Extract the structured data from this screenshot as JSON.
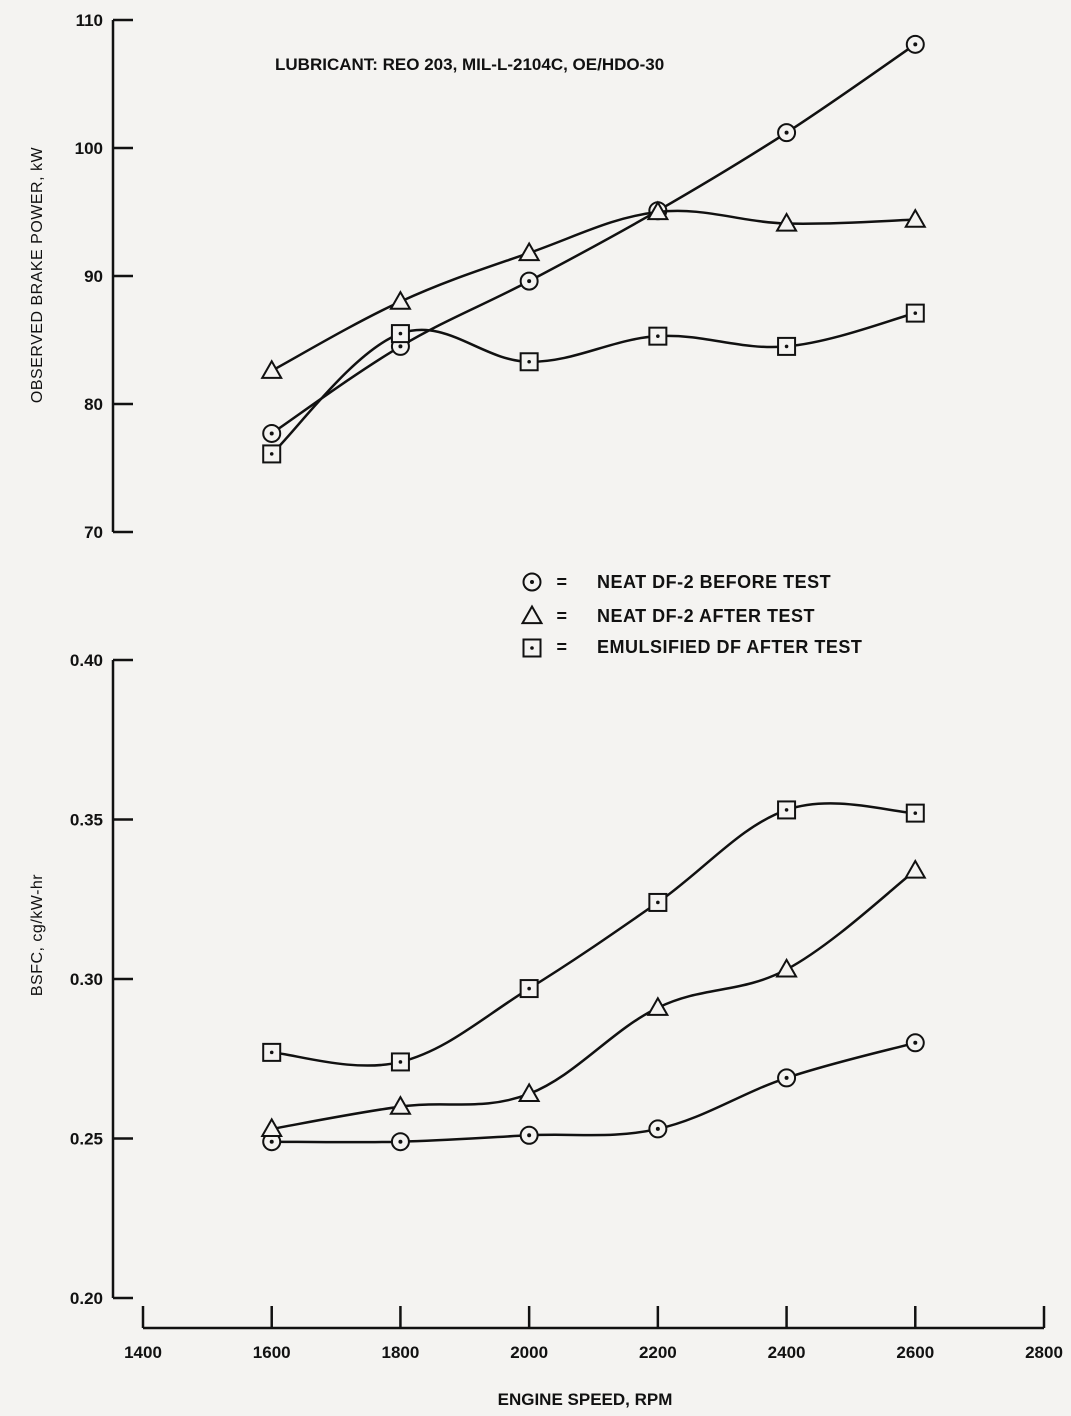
{
  "chart_data": [
    {
      "type": "line",
      "annotation": "LUBRICANT:  REO 203, MIL-L-2104C, OE/HDO-30",
      "ylabel": "OBSERVED BRAKE POWER, kW",
      "xlabel": "",
      "ylim": [
        70,
        110
      ],
      "yticks": [
        70,
        80,
        90,
        100,
        110
      ],
      "ytick_labels": [
        "70",
        "80",
        "90",
        "100",
        "110"
      ],
      "xlim": [
        1400,
        2800
      ],
      "x": [
        1600,
        1800,
        2000,
        2200,
        2400,
        2600
      ],
      "series": [
        {
          "name": "NEAT DF-2 BEFORE TEST",
          "marker": "circle",
          "values": [
            77.7,
            84.5,
            89.6,
            95.1,
            101.2,
            108.1
          ]
        },
        {
          "name": "NEAT DF-2 AFTER TEST",
          "marker": "triangle",
          "values": [
            82.6,
            88.0,
            91.8,
            95.0,
            94.1,
            94.4
          ]
        },
        {
          "name": "EMULSIFIED DF AFTER TEST",
          "marker": "square",
          "values": [
            76.1,
            85.5,
            83.3,
            85.3,
            84.5,
            87.1
          ]
        }
      ]
    },
    {
      "type": "line",
      "ylabel": "BSFC, cg/kW-hr",
      "xlabel": "ENGINE SPEED, RPM",
      "ylim": [
        0.2,
        0.4
      ],
      "yticks": [
        0.2,
        0.25,
        0.3,
        0.35,
        0.4
      ],
      "ytick_labels": [
        "0.20",
        "0.25",
        "0.30",
        "0.35",
        "0.40"
      ],
      "xlim": [
        1400,
        2800
      ],
      "xticks": [
        1400,
        1600,
        1800,
        2000,
        2200,
        2400,
        2600,
        2800
      ],
      "xtick_labels": [
        "1400",
        "1600",
        "1800",
        "2000",
        "2200",
        "2400",
        "2600",
        "2800"
      ],
      "x": [
        1600,
        1800,
        2000,
        2200,
        2400,
        2600
      ],
      "series": [
        {
          "name": "NEAT DF-2 BEFORE TEST",
          "marker": "circle",
          "values": [
            0.249,
            0.249,
            0.251,
            0.253,
            0.269,
            0.28
          ]
        },
        {
          "name": "NEAT DF-2 AFTER TEST",
          "marker": "triangle",
          "values": [
            0.253,
            0.26,
            0.264,
            0.291,
            0.303,
            0.334
          ]
        },
        {
          "name": "EMULSIFIED DF AFTER TEST",
          "marker": "square",
          "values": [
            0.277,
            0.274,
            0.297,
            0.324,
            0.353,
            0.352
          ]
        }
      ]
    }
  ],
  "legend": {
    "placement": "between-panels-right",
    "equals_sign": "=",
    "items": [
      {
        "marker": "circle",
        "label": "NEAT DF-2 BEFORE TEST"
      },
      {
        "marker": "triangle",
        "label": "NEAT DF-2 AFTER TEST"
      },
      {
        "marker": "square",
        "label": "EMULSIFIED DF AFTER TEST"
      }
    ]
  }
}
